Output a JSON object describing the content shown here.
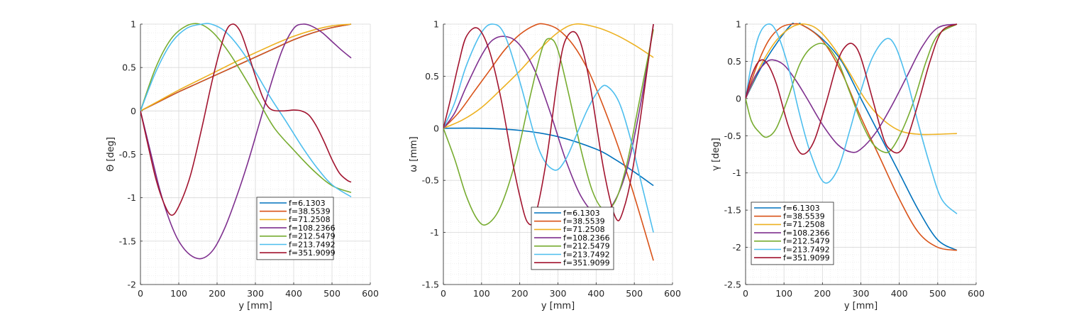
{
  "legend_labels": [
    "f=6.1303",
    "f=38.5539",
    "f=71.2508",
    "f=108.2366",
    "f=212.5479",
    "f=213.7492",
    "f=351.9099"
  ],
  "series_colors": [
    "#0072BD",
    "#D95319",
    "#EDB120",
    "#7E2F8E",
    "#77AC30",
    "#4DBEEE",
    "#A2142F"
  ],
  "chart_data": [
    {
      "type": "line",
      "title": "",
      "xlabel": "y [mm]",
      "ylabel": "Θ [deg]",
      "xlim": [
        0,
        600
      ],
      "ylim": [
        -2,
        1
      ],
      "xticks": [
        "0",
        "100",
        "200",
        "300",
        "400",
        "500",
        "600"
      ],
      "yticks": [
        "1",
        "0.5",
        "0",
        "-0.5",
        "-1",
        "-1.5",
        "-2"
      ],
      "grid": true,
      "minor_grid": true,
      "legend_location": "lower-right",
      "series": [
        {
          "name": "f=6.1303",
          "x": [
            0,
            50,
            100,
            150,
            200,
            250,
            300,
            350,
            400,
            450,
            500,
            550
          ],
          "values": [
            0,
            0.11,
            0.22,
            0.32,
            0.42,
            0.52,
            0.62,
            0.72,
            0.82,
            0.9,
            0.96,
            1.0
          ]
        },
        {
          "name": "f=38.5539",
          "x": [
            0,
            50,
            100,
            150,
            200,
            250,
            300,
            350,
            400,
            450,
            500,
            550
          ],
          "values": [
            0,
            0.11,
            0.22,
            0.32,
            0.42,
            0.52,
            0.62,
            0.72,
            0.82,
            0.9,
            0.96,
            1.0
          ]
        },
        {
          "name": "f=71.2508",
          "x": [
            0,
            50,
            100,
            150,
            200,
            250,
            300,
            350,
            400,
            450,
            500,
            550
          ],
          "values": [
            0,
            0.12,
            0.24,
            0.35,
            0.46,
            0.57,
            0.67,
            0.77,
            0.86,
            0.93,
            0.98,
            1.0
          ]
        },
        {
          "name": "f=108.2366",
          "x": [
            0,
            25,
            50,
            75,
            100,
            130,
            160,
            190,
            220,
            250,
            280,
            310,
            340,
            370,
            400,
            425,
            450,
            475,
            500,
            525,
            550
          ],
          "values": [
            0,
            -0.45,
            -0.9,
            -1.25,
            -1.5,
            -1.66,
            -1.7,
            -1.6,
            -1.35,
            -1.0,
            -0.6,
            -0.15,
            0.3,
            0.7,
            0.95,
            1.0,
            0.97,
            0.9,
            0.8,
            0.7,
            0.61
          ]
        },
        {
          "name": "f=212.5479",
          "x": [
            0,
            40,
            80,
            120,
            155,
            190,
            230,
            270,
            310,
            350,
            400,
            450,
            500,
            550
          ],
          "values": [
            0,
            0.5,
            0.83,
            0.98,
            1.0,
            0.9,
            0.68,
            0.4,
            0.1,
            -0.2,
            -0.45,
            -0.68,
            -0.86,
            -0.94
          ]
        },
        {
          "name": "f=213.7492",
          "x": [
            0,
            40,
            80,
            120,
            160,
            185,
            220,
            260,
            300,
            340,
            380,
            420,
            460,
            500,
            550
          ],
          "values": [
            0,
            0.45,
            0.78,
            0.95,
            1.0,
            1.0,
            0.92,
            0.72,
            0.45,
            0.15,
            -0.12,
            -0.4,
            -0.65,
            -0.85,
            -0.99
          ]
        },
        {
          "name": "f=351.9099",
          "x": [
            0,
            20,
            40,
            60,
            80,
            100,
            130,
            160,
            190,
            220,
            240,
            260,
            280,
            300,
            320,
            340,
            370,
            400,
            420,
            440,
            460,
            480,
            500,
            520,
            540,
            550
          ],
          "values": [
            0,
            -0.4,
            -0.78,
            -1.05,
            -1.2,
            -1.1,
            -0.75,
            -0.2,
            0.4,
            0.88,
            1.0,
            0.92,
            0.68,
            0.4,
            0.15,
            0.02,
            0.0,
            0.01,
            0.0,
            -0.05,
            -0.18,
            -0.36,
            -0.56,
            -0.72,
            -0.8,
            -0.82
          ]
        }
      ]
    },
    {
      "type": "line",
      "title": "",
      "xlabel": "y [mm]",
      "ylabel": "ω [mm]",
      "xlim": [
        0,
        600
      ],
      "ylim": [
        -1.5,
        1
      ],
      "xticks": [
        "0",
        "100",
        "200",
        "300",
        "400",
        "500",
        "600"
      ],
      "yticks": [
        "1",
        "0.5",
        "0",
        "-0.5",
        "-1",
        "-1.5"
      ],
      "grid": true,
      "minor_grid": true,
      "legend_location": "bottom-center",
      "series": [
        {
          "name": "f=6.1303",
          "x": [
            0,
            100,
            200,
            300,
            400,
            450,
            500,
            550
          ],
          "values": [
            0,
            0.0,
            -0.02,
            -0.08,
            -0.2,
            -0.3,
            -0.42,
            -0.55
          ]
        },
        {
          "name": "f=38.5539",
          "x": [
            0,
            40,
            80,
            120,
            160,
            200,
            240,
            265,
            300,
            340,
            380,
            420,
            460,
            500,
            550
          ],
          "values": [
            0,
            0.15,
            0.35,
            0.55,
            0.75,
            0.9,
            0.99,
            1.0,
            0.95,
            0.8,
            0.55,
            0.2,
            -0.2,
            -0.65,
            -1.27
          ]
        },
        {
          "name": "f=71.2508",
          "x": [
            0,
            50,
            100,
            150,
            200,
            250,
            300,
            345,
            400,
            450,
            500,
            550
          ],
          "values": [
            0,
            0.08,
            0.2,
            0.37,
            0.55,
            0.75,
            0.92,
            1.0,
            0.97,
            0.9,
            0.8,
            0.68
          ]
        },
        {
          "name": "f=108.2366",
          "x": [
            0,
            30,
            60,
            100,
            130,
            165,
            200,
            240,
            280,
            320,
            360,
            400,
            440,
            480,
            520,
            550
          ],
          "values": [
            0,
            0.15,
            0.4,
            0.7,
            0.85,
            0.88,
            0.8,
            0.55,
            0.15,
            -0.3,
            -0.65,
            -0.82,
            -0.75,
            -0.4,
            0.3,
            1.0
          ]
        },
        {
          "name": "f=212.5479",
          "x": [
            0,
            30,
            60,
            90,
            115,
            150,
            190,
            230,
            260,
            280,
            300,
            330,
            360,
            390,
            420,
            450,
            480,
            510,
            550
          ],
          "values": [
            0,
            -0.3,
            -0.65,
            -0.88,
            -0.92,
            -0.75,
            -0.3,
            0.35,
            0.78,
            0.86,
            0.75,
            0.3,
            -0.2,
            -0.6,
            -0.78,
            -0.7,
            -0.35,
            0.2,
            0.95
          ]
        },
        {
          "name": "f=213.7492",
          "x": [
            0,
            30,
            60,
            100,
            130,
            160,
            200,
            250,
            290,
            320,
            350,
            380,
            410,
            430,
            460,
            490,
            520,
            550
          ],
          "values": [
            0,
            0.25,
            0.6,
            0.92,
            1.0,
            0.9,
            0.45,
            -0.2,
            -0.4,
            -0.3,
            -0.05,
            0.2,
            0.38,
            0.4,
            0.25,
            -0.1,
            -0.55,
            -1.0
          ]
        },
        {
          "name": "f=351.9099",
          "x": [
            0,
            20,
            40,
            60,
            90,
            120,
            150,
            180,
            200,
            220,
            240,
            270,
            300,
            320,
            350,
            380,
            420,
            450,
            470,
            500,
            550
          ],
          "values": [
            0,
            0.3,
            0.62,
            0.88,
            0.96,
            0.75,
            0.3,
            -0.3,
            -0.65,
            -0.9,
            -0.85,
            -0.3,
            0.5,
            0.85,
            0.9,
            0.5,
            -0.4,
            -0.85,
            -0.8,
            -0.3,
            1.0
          ]
        }
      ]
    },
    {
      "type": "line",
      "title": "",
      "xlabel": "y [mm]",
      "ylabel": "γ [deg]",
      "xlim": [
        0,
        600
      ],
      "ylim": [
        -2.5,
        1
      ],
      "xticks": [
        "0",
        "100",
        "200",
        "300",
        "400",
        "500",
        "600"
      ],
      "yticks": [
        "1",
        "0.5",
        "0",
        "-0.5",
        "-1",
        "-1.5",
        "-2",
        "-2.5"
      ],
      "grid": true,
      "minor_grid": true,
      "legend_location": "lower-left",
      "series": [
        {
          "name": "f=6.1303",
          "x": [
            0,
            50,
            120,
            150,
            200,
            250,
            300,
            350,
            400,
            450,
            500,
            550
          ],
          "values": [
            0,
            0.5,
            1.0,
            0.98,
            0.8,
            0.5,
            0.0,
            -0.5,
            -1.0,
            -1.5,
            -1.9,
            -2.04
          ]
        },
        {
          "name": "f=38.5539",
          "x": [
            0,
            30,
            60,
            90,
            120,
            150,
            200,
            250,
            300,
            350,
            400,
            450,
            500,
            550
          ],
          "values": [
            0,
            0.45,
            0.78,
            0.95,
            1.0,
            0.98,
            0.78,
            0.35,
            -0.25,
            -0.8,
            -1.35,
            -1.8,
            -2.0,
            -2.04
          ]
        },
        {
          "name": "f=71.2508",
          "x": [
            0,
            40,
            80,
            120,
            155,
            190,
            230,
            270,
            310,
            350,
            400,
            450,
            500,
            550
          ],
          "values": [
            0,
            0.45,
            0.78,
            0.96,
            1.0,
            0.92,
            0.68,
            0.35,
            0.0,
            -0.25,
            -0.43,
            -0.48,
            -0.48,
            -0.47
          ]
        },
        {
          "name": "f=108.2366",
          "x": [
            0,
            25,
            50,
            70,
            100,
            130,
            160,
            200,
            240,
            275,
            300,
            340,
            380,
            420,
            460,
            500,
            550
          ],
          "values": [
            0,
            0.3,
            0.47,
            0.52,
            0.45,
            0.25,
            0.0,
            -0.35,
            -0.62,
            -0.72,
            -0.68,
            -0.45,
            -0.1,
            0.3,
            0.7,
            0.95,
            1.0
          ]
        },
        {
          "name": "f=212.5479",
          "x": [
            0,
            15,
            35,
            55,
            80,
            110,
            140,
            170,
            205,
            240,
            270,
            300,
            330,
            360,
            380,
            410,
            440,
            470,
            500,
            550
          ],
          "values": [
            0,
            -0.3,
            -0.45,
            -0.52,
            -0.4,
            0.0,
            0.45,
            0.68,
            0.73,
            0.5,
            0.1,
            -0.3,
            -0.6,
            -0.72,
            -0.68,
            -0.4,
            0.0,
            0.5,
            0.85,
            1.0
          ]
        },
        {
          "name": "f=213.7492",
          "x": [
            0,
            15,
            35,
            58,
            80,
            110,
            140,
            170,
            205,
            240,
            270,
            300,
            330,
            365,
            390,
            420,
            450,
            480,
            510,
            550
          ],
          "values": [
            0,
            0.45,
            0.85,
            1.0,
            0.9,
            0.45,
            -0.2,
            -0.75,
            -1.13,
            -0.95,
            -0.45,
            0.1,
            0.55,
            0.8,
            0.7,
            0.25,
            -0.35,
            -0.9,
            -1.35,
            -1.55
          ]
        },
        {
          "name": "f=351.9099",
          "x": [
            0,
            15,
            35,
            55,
            80,
            110,
            135,
            155,
            180,
            210,
            240,
            260,
            280,
            300,
            330,
            360,
            380,
            400,
            420,
            450,
            480,
            510,
            550
          ],
          "values": [
            0,
            0.3,
            0.5,
            0.48,
            0.2,
            -0.35,
            -0.68,
            -0.74,
            -0.55,
            -0.05,
            0.5,
            0.7,
            0.73,
            0.55,
            0.0,
            -0.55,
            -0.7,
            -0.72,
            -0.55,
            -0.05,
            0.5,
            0.9,
            1.0
          ]
        }
      ]
    }
  ]
}
